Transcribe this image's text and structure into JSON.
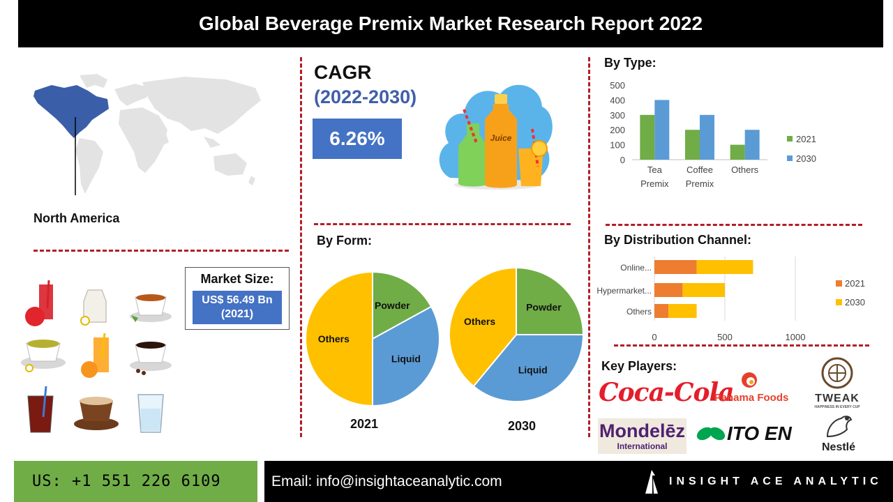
{
  "header": {
    "title": "Global Beverage Premix Market Research Report 2022"
  },
  "region": {
    "label": "North America"
  },
  "cagr": {
    "title": "CAGR",
    "period": "(2022-2030)",
    "value": "6.26%"
  },
  "market_size": {
    "label": "Market Size:",
    "value_line1": "US$ 56.49 Bn",
    "value_line2": "(2021)"
  },
  "sections": {
    "by_type": "By Type:",
    "by_form": "By Form:",
    "by_channel": "By Distribution Channel:",
    "key_players": "Key Players:"
  },
  "key_players": {
    "coca_cola": "Coca-Cola",
    "panama": "Panama Foods",
    "tweak": "TWEAK",
    "tweak_tagline": "HAPPINESS IN EVERY CUP",
    "mondelez_1": "Mondelēz",
    "mondelez_2": "International",
    "itoen": "ITO EN",
    "nestle": "Nestlé"
  },
  "illustration": {
    "bottle_label": "Juice"
  },
  "footer": {
    "phone": "US: +1 551 226 6109",
    "email": "Email: info@insightaceanalytic.com",
    "brand": "INSIGHT ACE ANALYTIC"
  },
  "colors": {
    "green": "#70ad47",
    "blue": "#5b9bd5",
    "orange": "#ed7d31",
    "yellow": "#ffc000",
    "accent_red": "#b21e28",
    "box_blue": "#4472c4"
  },
  "chart_data": [
    {
      "type": "bar",
      "title": "By Type:",
      "categories": [
        "Tea Premix",
        "Coffee Premix",
        "Others"
      ],
      "category_lines": [
        [
          "Tea",
          "Premix"
        ],
        [
          "Coffee",
          "Premix"
        ],
        [
          "Others"
        ]
      ],
      "series": [
        {
          "name": "2021",
          "values": [
            300,
            200,
            100
          ],
          "color": "#70ad47"
        },
        {
          "name": "2030",
          "values": [
            400,
            300,
            200
          ],
          "color": "#5b9bd5"
        }
      ],
      "ylim": [
        0,
        500
      ],
      "yticks": [
        0,
        100,
        200,
        300,
        400,
        500
      ],
      "legend": "right"
    },
    {
      "type": "pie",
      "title": "2021",
      "labels": [
        "Powder",
        "Liquid",
        "Others"
      ],
      "values": [
        17,
        33,
        50
      ],
      "colors": [
        "#70ad47",
        "#5b9bd5",
        "#ffc000"
      ]
    },
    {
      "type": "pie",
      "title": "2030",
      "labels": [
        "Powder",
        "Liquid",
        "Others"
      ],
      "values": [
        25,
        36,
        39
      ],
      "colors": [
        "#70ad47",
        "#5b9bd5",
        "#ffc000"
      ]
    },
    {
      "type": "bar",
      "orientation": "horizontal",
      "stacked": true,
      "title": "By Distribution Channel:",
      "categories": [
        "Online...",
        "Hypermarket...",
        "Others"
      ],
      "series": [
        {
          "name": "2021",
          "values": [
            300,
            200,
            100
          ],
          "color": "#ed7d31"
        },
        {
          "name": "2030",
          "values": [
            400,
            300,
            200
          ],
          "color": "#ffc000"
        }
      ],
      "xlim": [
        0,
        1000
      ],
      "xticks": [
        0,
        500,
        1000
      ],
      "legend": "right"
    }
  ]
}
